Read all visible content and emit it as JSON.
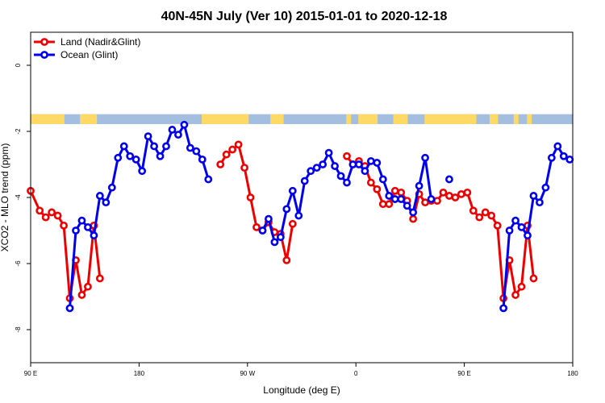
{
  "chart_data": {
    "type": "line",
    "title": "40N-45N July (Ver 10)   2015-01-01 to 2020-12-18",
    "xlabel": "Longitude (deg E)",
    "ylabel": "XCO2 - MLO trend (ppm)",
    "x_axis": {
      "range": [
        90,
        450
      ],
      "ticks": [
        90,
        180,
        270,
        360,
        450,
        540
      ],
      "tick_labels": [
        "90 E",
        "180",
        "90 W",
        "0",
        "90 E",
        "180"
      ]
    },
    "y_axis": {
      "range": [
        -9,
        1
      ],
      "ticks": [
        0,
        -2,
        -4,
        -6,
        -8
      ],
      "tick_labels": [
        "0",
        "-2",
        "-4",
        "-6",
        "-8"
      ]
    },
    "grid": false,
    "legend_position": "top-left",
    "land_ocean_strip": {
      "y_range": [
        -1.48,
        -1.78
      ],
      "land_color": "#ffd966",
      "ocean_color": "#a4bedf"
    },
    "series": [
      {
        "name": "Land (Nadir&Glint)",
        "color": "#ee0000",
        "points": [
          [
            90,
            -3.8
          ],
          [
            97.5,
            -4.4
          ],
          [
            102.5,
            -4.6
          ],
          [
            107.5,
            -4.45
          ],
          [
            112.5,
            -4.55
          ],
          [
            117.5,
            -4.85
          ],
          [
            122.5,
            -7.05
          ],
          [
            127.5,
            -5.9
          ],
          [
            132.5,
            -6.95
          ],
          [
            137.5,
            -6.7
          ],
          [
            142.5,
            -4.85
          ],
          [
            147.5,
            -6.45
          ],
          null,
          [
            247.5,
            -3.0
          ],
          [
            252.5,
            -2.7
          ],
          [
            257.5,
            -2.55
          ],
          [
            262.5,
            -2.4
          ],
          [
            267.5,
            -3.1
          ],
          [
            272.5,
            -4.0
          ],
          [
            277.5,
            -4.9
          ],
          [
            282.5,
            -5.0
          ],
          [
            287.5,
            -4.75
          ],
          [
            292.5,
            -5.05
          ],
          [
            297.5,
            -5.1
          ],
          [
            302.5,
            -5.9
          ],
          [
            307.5,
            -4.8
          ],
          null,
          [
            352.5,
            -2.75
          ],
          [
            357.5,
            -3.0
          ],
          [
            362.5,
            -2.9
          ],
          [
            367.5,
            -3.05
          ],
          [
            372.5,
            -3.55
          ],
          [
            377.5,
            -3.75
          ],
          [
            382.5,
            -4.2
          ],
          [
            387.5,
            -4.2
          ],
          [
            392.5,
            -3.8
          ],
          [
            397.5,
            -3.85
          ],
          [
            402.5,
            -4.1
          ],
          [
            407.5,
            -4.65
          ],
          [
            412.5,
            -3.9
          ],
          [
            417.5,
            -4.15
          ],
          [
            422.5,
            -4.1
          ],
          [
            427.5,
            -4.1
          ],
          [
            432.5,
            -3.85
          ],
          [
            437.5,
            -3.95
          ],
          [
            442.5,
            -4.0
          ],
          [
            447.5,
            -3.9
          ],
          [
            452.5,
            -3.85
          ],
          [
            457.5,
            -4.4
          ],
          [
            462.5,
            -4.6
          ],
          [
            467.5,
            -4.45
          ],
          [
            472.5,
            -4.55
          ],
          [
            477.5,
            -4.85
          ],
          [
            482.5,
            -7.05
          ],
          [
            487.5,
            -5.9
          ],
          [
            492.5,
            -6.95
          ],
          [
            497.5,
            -6.7
          ],
          [
            502.5,
            -4.85
          ],
          [
            507.5,
            -6.45
          ]
        ]
      },
      {
        "name": "Ocean (Glint)",
        "color": "#0000ee",
        "points": [
          [
            122.5,
            -7.35
          ],
          [
            127.5,
            -5.0
          ],
          [
            132.5,
            -4.7
          ],
          [
            137.5,
            -4.9
          ],
          [
            142.5,
            -5.15
          ],
          [
            147.5,
            -3.95
          ],
          [
            152.5,
            -4.15
          ],
          [
            157.5,
            -3.7
          ],
          [
            162.5,
            -2.8
          ],
          [
            167.5,
            -2.45
          ],
          [
            172.5,
            -2.75
          ],
          [
            177.5,
            -2.85
          ],
          [
            182.5,
            -3.2
          ],
          [
            187.5,
            -2.15
          ],
          [
            192.5,
            -2.45
          ],
          [
            197.5,
            -2.75
          ],
          [
            202.5,
            -2.45
          ],
          [
            207.5,
            -1.95
          ],
          [
            212.5,
            -2.1
          ],
          [
            217.5,
            -1.8
          ],
          [
            222.5,
            -2.5
          ],
          [
            227.5,
            -2.6
          ],
          [
            232.5,
            -2.85
          ],
          [
            237.5,
            -3.45
          ],
          null,
          [
            282.5,
            -5.0
          ],
          [
            287.5,
            -4.65
          ],
          [
            292.5,
            -5.35
          ],
          [
            297.5,
            -5.2
          ],
          [
            302.5,
            -4.35
          ],
          [
            307.5,
            -3.8
          ],
          [
            312.5,
            -4.55
          ],
          [
            317.5,
            -3.5
          ],
          [
            322.5,
            -3.2
          ],
          [
            327.5,
            -3.1
          ],
          [
            332.5,
            -3.0
          ],
          [
            337.5,
            -2.65
          ],
          [
            342.5,
            -3.05
          ],
          [
            347.5,
            -3.35
          ],
          [
            352.5,
            -3.55
          ],
          [
            357.5,
            -3.0
          ],
          [
            362.5,
            -3.0
          ],
          [
            367.5,
            -3.2
          ],
          [
            372.5,
            -2.9
          ],
          [
            377.5,
            -2.95
          ],
          [
            382.5,
            -3.45
          ],
          [
            387.5,
            -3.95
          ],
          [
            392.5,
            -4.05
          ],
          [
            397.5,
            -4.05
          ],
          [
            402.5,
            -4.25
          ],
          [
            407.5,
            -4.45
          ],
          [
            412.5,
            -3.65
          ],
          [
            417.5,
            -2.8
          ],
          [
            422.5,
            -4.05
          ],
          null,
          [
            437.5,
            -3.45
          ],
          null,
          [
            482.5,
            -7.35
          ],
          [
            487.5,
            -5.0
          ],
          [
            492.5,
            -4.7
          ],
          [
            497.5,
            -4.9
          ],
          [
            502.5,
            -5.15
          ],
          [
            507.5,
            -3.95
          ],
          [
            512.5,
            -4.15
          ],
          [
            517.5,
            -3.7
          ],
          [
            522.5,
            -2.8
          ],
          [
            527.5,
            -2.45
          ],
          [
            532.5,
            -2.75
          ],
          [
            537.5,
            -2.85
          ]
        ]
      }
    ]
  }
}
